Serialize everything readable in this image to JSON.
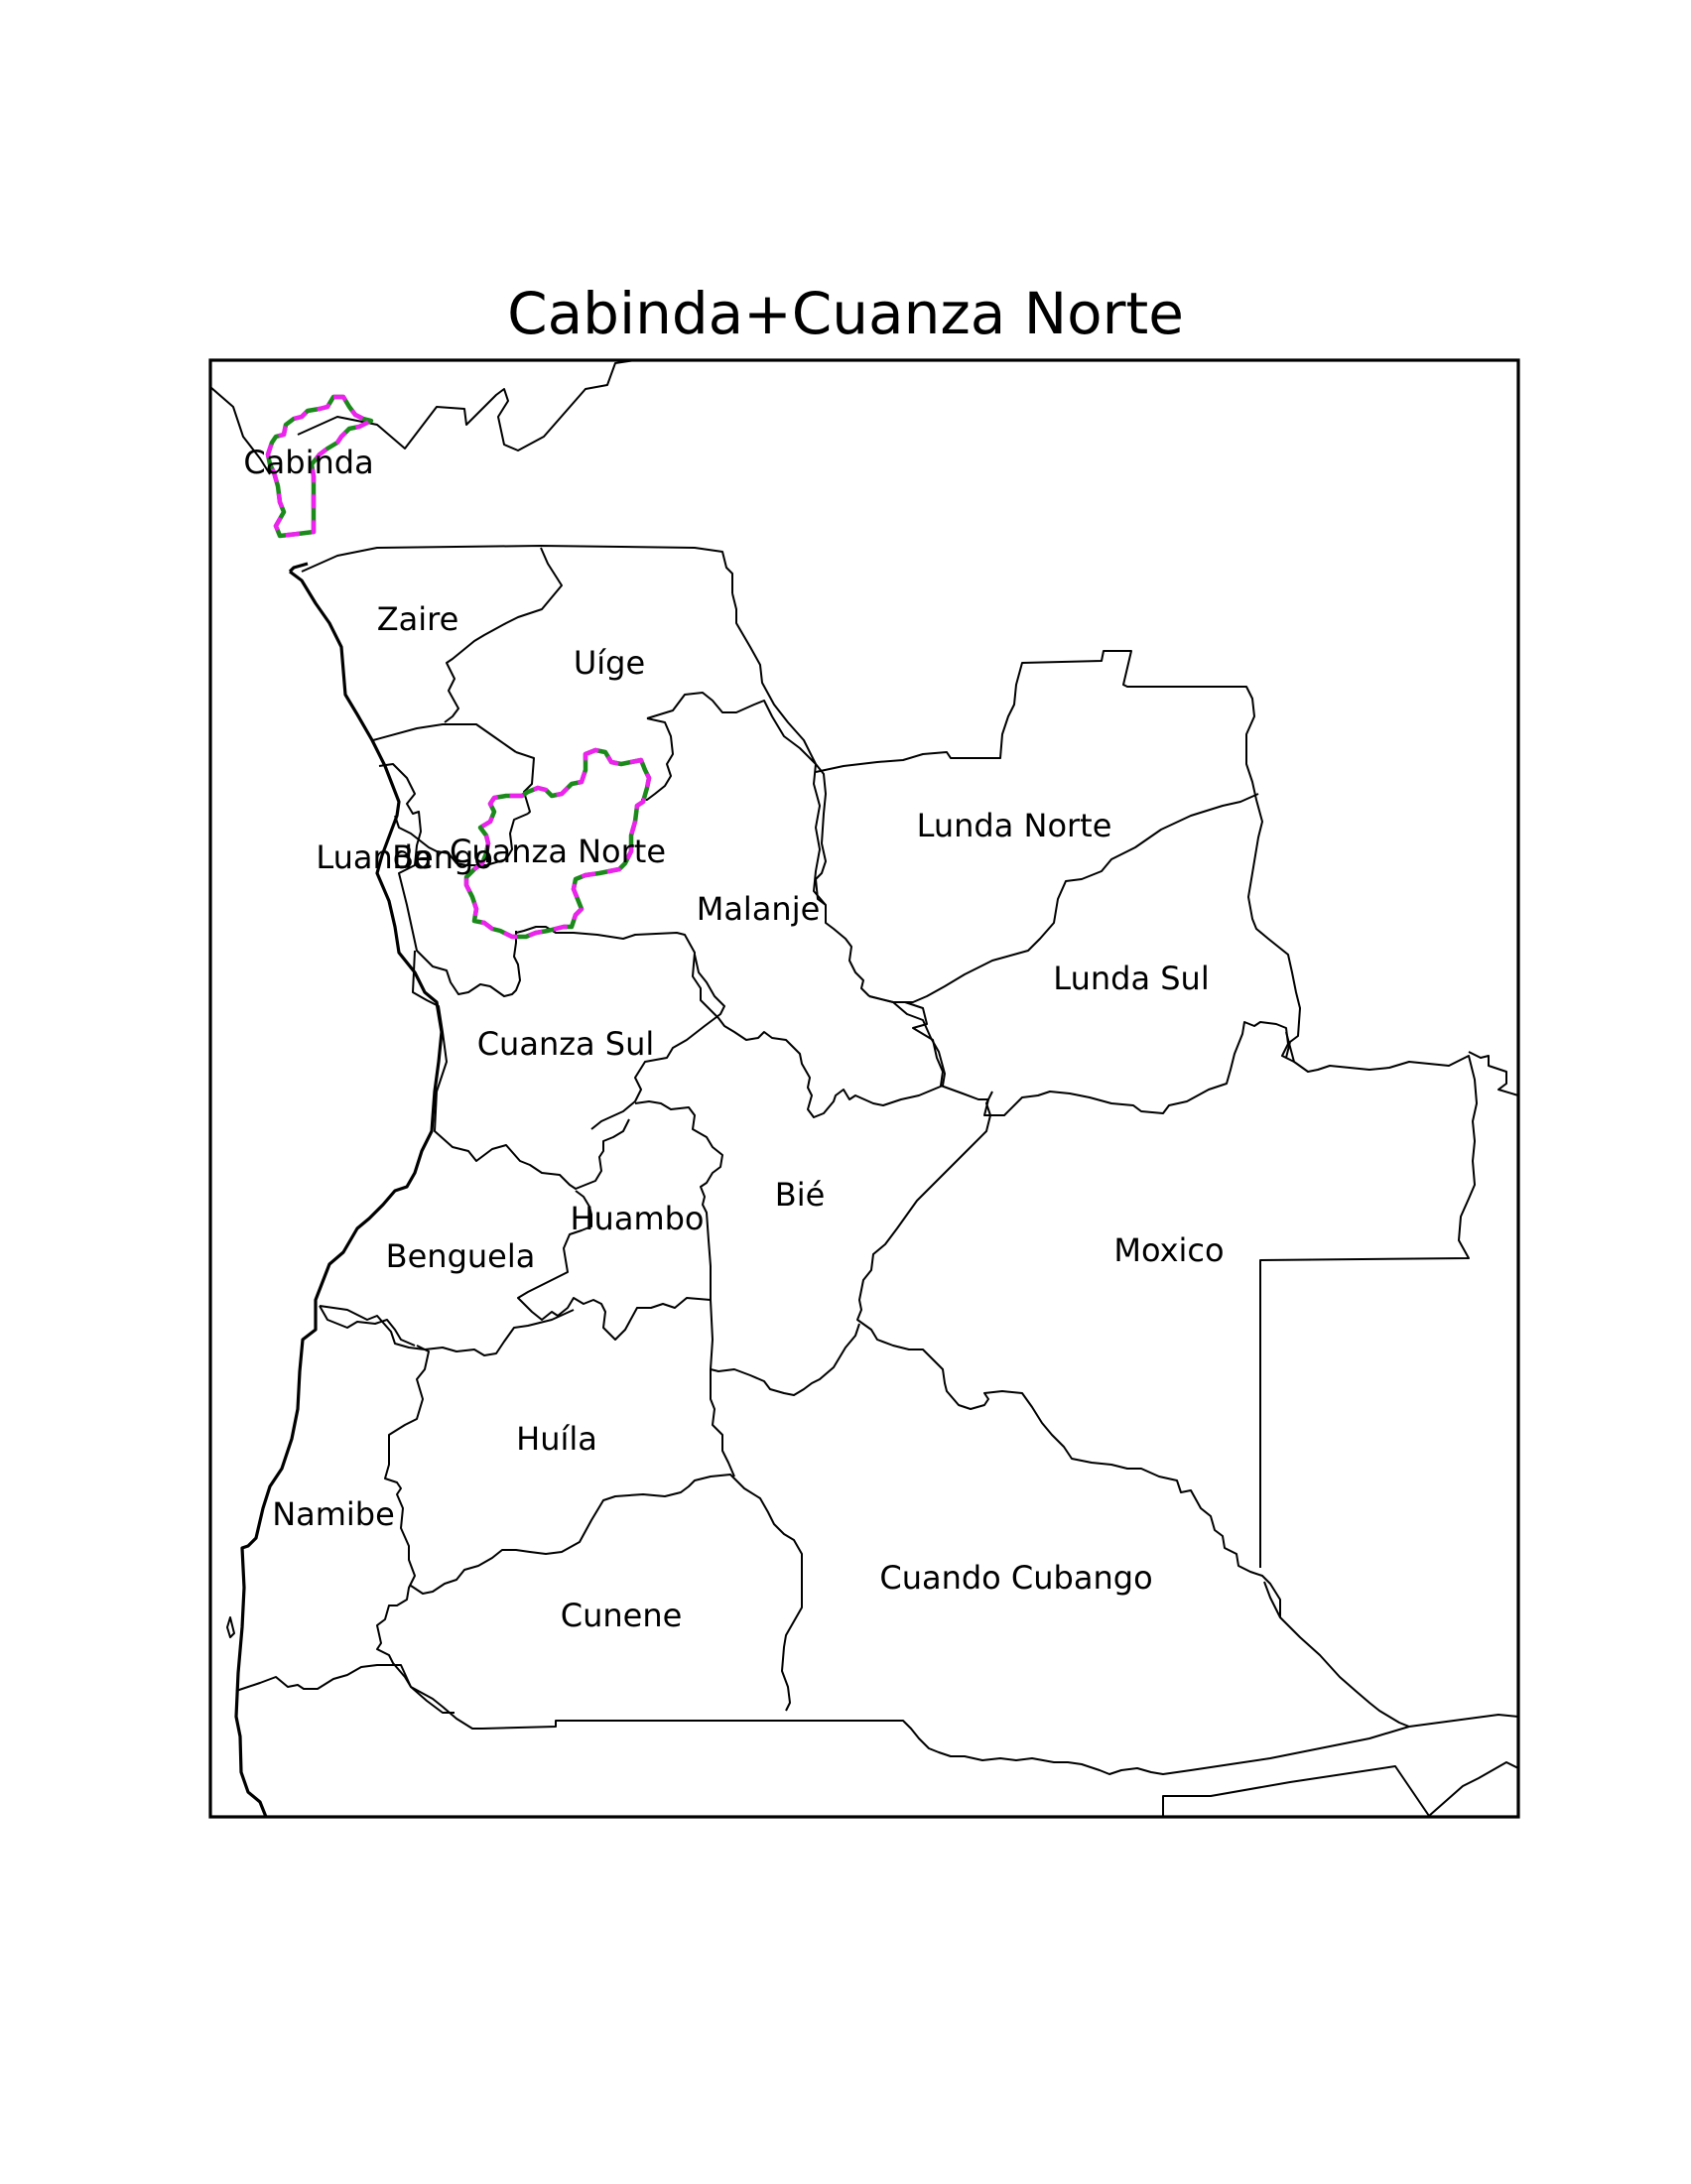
{
  "title": "Cabinda+Cuanza Norte",
  "highlighted": [
    "Cabinda",
    "Cuanza Norte"
  ],
  "highlight_colors": {
    "outline": "#1a8a1a",
    "dash": "#ee22ee"
  },
  "provinces": [
    {
      "key": "cabinda",
      "name": "Cabinda"
    },
    {
      "key": "zaire",
      "name": "Zaire"
    },
    {
      "key": "uige",
      "name": "Uíge"
    },
    {
      "key": "luanda",
      "name": "Luanda"
    },
    {
      "key": "bengo",
      "name": "Bengo"
    },
    {
      "key": "cuanza-norte",
      "name": "Cuanza Norte"
    },
    {
      "key": "malanje",
      "name": "Malanje"
    },
    {
      "key": "lunda-norte",
      "name": "Lunda Norte"
    },
    {
      "key": "lunda-sul",
      "name": "Lunda Sul"
    },
    {
      "key": "cuanza-sul",
      "name": "Cuanza Sul"
    },
    {
      "key": "bie",
      "name": "Bié"
    },
    {
      "key": "huambo",
      "name": "Huambo"
    },
    {
      "key": "benguela",
      "name": "Benguela"
    },
    {
      "key": "moxico",
      "name": "Moxico"
    },
    {
      "key": "huila",
      "name": "Huíla"
    },
    {
      "key": "namibe",
      "name": "Namibe"
    },
    {
      "key": "cunene",
      "name": "Cunene"
    },
    {
      "key": "cuando-cubango",
      "name": "Cuando Cubango"
    }
  ]
}
